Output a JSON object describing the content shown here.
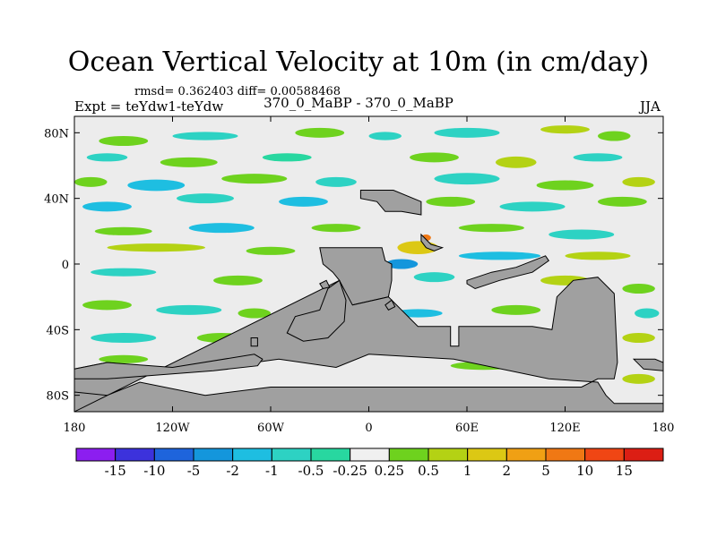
{
  "header": {
    "title": "Ocean Vertical Velocity at 10m (in cm/day)",
    "stats": "rmsd= 0.362403 diff= 0.00588468",
    "expt": "Expt = teYdw1-teYdw",
    "center_label": "370_0_MaBP - 370_0_MaBP",
    "season": "JJA"
  },
  "chart_data": {
    "type": "heatmap",
    "title": "Ocean Vertical Velocity at 10m (in cm/day)",
    "xlim": [
      -180,
      180
    ],
    "ylim": [
      -90,
      90
    ],
    "x_ticks": [
      {
        "value": -180,
        "label": "180"
      },
      {
        "value": -120,
        "label": "120W"
      },
      {
        "value": -60,
        "label": "60W"
      },
      {
        "value": 0,
        "label": "0"
      },
      {
        "value": 60,
        "label": "60E"
      },
      {
        "value": 120,
        "label": "120E"
      },
      {
        "value": 180,
        "label": "180"
      }
    ],
    "y_ticks": [
      {
        "value": 80,
        "label": "80N"
      },
      {
        "value": 40,
        "label": "40N"
      },
      {
        "value": 0,
        "label": "0"
      },
      {
        "value": -40,
        "label": "40S"
      },
      {
        "value": -80,
        "label": "80S"
      }
    ],
    "colorbar": {
      "labels": [
        "-15",
        "-10",
        "-5",
        "-2",
        "-1",
        "-0.5",
        "-0.25",
        "0.25",
        "0.5",
        "1",
        "2",
        "5",
        "10",
        "15"
      ],
      "colors": [
        "#8c1ef0",
        "#3c32dc",
        "#1e64dc",
        "#1496dc",
        "#1ebee1",
        "#2dd2c3",
        "#28d7a0",
        "#f0f0f0",
        "#6ed21e",
        "#b4d214",
        "#dcc814",
        "#f0a014",
        "#f07814",
        "#f04614",
        "#dc1e14"
      ]
    },
    "land_color": "#a0a0a0",
    "ocean_color": "#ececec",
    "land_polygons": [
      {
        "name": "africa-eurasia-land",
        "points": [
          [
            -30,
            10
          ],
          [
            8,
            10
          ],
          [
            10,
            2
          ],
          [
            14,
            0
          ],
          [
            14,
            -10
          ],
          [
            12,
            -20
          ],
          [
            -10,
            -25
          ],
          [
            -14,
            -22
          ],
          [
            -18,
            -10
          ],
          [
            -22,
            -5
          ],
          [
            -28,
            0
          ]
        ]
      },
      {
        "name": "south-land",
        "points": [
          [
            -18,
            -10
          ],
          [
            -10,
            -25
          ],
          [
            12,
            -20
          ],
          [
            30,
            -38
          ],
          [
            50,
            -38
          ],
          [
            50,
            -50
          ],
          [
            55,
            -50
          ],
          [
            55,
            -38
          ],
          [
            100,
            -38
          ],
          [
            112,
            -40
          ],
          [
            115,
            -20
          ],
          [
            125,
            -10
          ],
          [
            140,
            -8
          ],
          [
            150,
            -18
          ],
          [
            152,
            -60
          ],
          [
            150,
            -70
          ],
          [
            140,
            -70
          ],
          [
            130,
            -75
          ],
          [
            0,
            -75
          ],
          [
            -60,
            -75
          ],
          [
            -100,
            -80
          ],
          [
            -140,
            -72
          ],
          [
            -160,
            -80
          ],
          [
            -180,
            -78
          ],
          [
            -180,
            -90
          ],
          [
            180,
            -90
          ],
          [
            180,
            -85
          ],
          [
            150,
            -85
          ],
          [
            145,
            -80
          ],
          [
            140,
            -72
          ],
          [
            110,
            -70
          ],
          [
            52,
            -58
          ],
          [
            0,
            -55
          ],
          [
            -20,
            -63
          ],
          [
            -55,
            -58
          ],
          [
            -70,
            -60
          ],
          [
            -90,
            -62
          ],
          [
            -110,
            -65
          ],
          [
            -160,
            -60
          ],
          [
            -180,
            -64
          ],
          [
            -180,
            -78
          ],
          [
            -180,
            -90
          ]
        ]
      },
      {
        "name": "west-antarctic-land",
        "points": [
          [
            -180,
            -64
          ],
          [
            -160,
            -60
          ],
          [
            -120,
            -63
          ],
          [
            -70,
            -55
          ],
          [
            -65,
            -58
          ],
          [
            -68,
            -62
          ],
          [
            -95,
            -65
          ],
          [
            -160,
            -70
          ],
          [
            -180,
            -70
          ]
        ]
      },
      {
        "name": "west-land-lobe",
        "points": [
          [
            -50,
            -42
          ],
          [
            -45,
            -32
          ],
          [
            -30,
            -28
          ],
          [
            -25,
            -15
          ],
          [
            -18,
            -10
          ],
          [
            -14,
            -22
          ],
          [
            -15,
            -35
          ],
          [
            -25,
            -45
          ],
          [
            -40,
            -47
          ]
        ]
      },
      {
        "name": "north-island-1",
        "points": [
          [
            -5,
            45
          ],
          [
            15,
            45
          ],
          [
            32,
            38
          ],
          [
            32,
            30
          ],
          [
            20,
            32
          ],
          [
            10,
            32
          ],
          [
            5,
            38
          ],
          [
            -5,
            40
          ]
        ]
      },
      {
        "name": "north-island-2",
        "points": [
          [
            32,
            18
          ],
          [
            38,
            12
          ],
          [
            45,
            10
          ],
          [
            40,
            8
          ],
          [
            35,
            10
          ],
          [
            32,
            14
          ]
        ]
      },
      {
        "name": "east-ridge-island",
        "points": [
          [
            60,
            -10
          ],
          [
            75,
            -5
          ],
          [
            90,
            -2
          ],
          [
            108,
            5
          ],
          [
            110,
            2
          ],
          [
            100,
            -5
          ],
          [
            80,
            -10
          ],
          [
            65,
            -15
          ],
          [
            60,
            -12
          ]
        ]
      },
      {
        "name": "small-island-west",
        "points": [
          [
            -30,
            -12
          ],
          [
            -26,
            -10
          ],
          [
            -24,
            -14
          ],
          [
            -28,
            -15
          ]
        ]
      },
      {
        "name": "small-island-mid",
        "points": [
          [
            10,
            -25
          ],
          [
            14,
            -22
          ],
          [
            16,
            -26
          ],
          [
            12,
            -28
          ]
        ]
      },
      {
        "name": "small-island-east",
        "points": [
          [
            162,
            -58
          ],
          [
            175,
            -58
          ],
          [
            180,
            -60
          ],
          [
            180,
            -65
          ],
          [
            168,
            -64
          ]
        ]
      },
      {
        "name": "small-island-nw",
        "points": [
          [
            -72,
            -45
          ],
          [
            -68,
            -45
          ],
          [
            -68,
            -50
          ],
          [
            -72,
            -50
          ]
        ]
      }
    ],
    "anomaly_patches": [
      {
        "lon": -150,
        "lat": 75,
        "w": 30,
        "h": 6,
        "level": 8
      },
      {
        "lon": -100,
        "lat": 78,
        "w": 40,
        "h": 5,
        "level": 5
      },
      {
        "lon": -30,
        "lat": 80,
        "w": 30,
        "h": 6,
        "level": 8
      },
      {
        "lon": 10,
        "lat": 78,
        "w": 20,
        "h": 5,
        "level": 5
      },
      {
        "lon": 60,
        "lat": 80,
        "w": 40,
        "h": 6,
        "level": 5
      },
      {
        "lon": 120,
        "lat": 82,
        "w": 30,
        "h": 5,
        "level": 9
      },
      {
        "lon": 150,
        "lat": 78,
        "w": 20,
        "h": 6,
        "level": 8
      },
      {
        "lon": -160,
        "lat": 65,
        "w": 25,
        "h": 5,
        "level": 5
      },
      {
        "lon": -110,
        "lat": 62,
        "w": 35,
        "h": 6,
        "level": 8
      },
      {
        "lon": -50,
        "lat": 65,
        "w": 30,
        "h": 5,
        "level": 6
      },
      {
        "lon": 40,
        "lat": 65,
        "w": 30,
        "h": 6,
        "level": 8
      },
      {
        "lon": 90,
        "lat": 62,
        "w": 25,
        "h": 7,
        "level": 9
      },
      {
        "lon": 140,
        "lat": 65,
        "w": 30,
        "h": 5,
        "level": 5
      },
      {
        "lon": -170,
        "lat": 50,
        "w": 20,
        "h": 6,
        "level": 8
      },
      {
        "lon": -130,
        "lat": 48,
        "w": 35,
        "h": 7,
        "level": 4
      },
      {
        "lon": -70,
        "lat": 52,
        "w": 40,
        "h": 6,
        "level": 8
      },
      {
        "lon": -20,
        "lat": 50,
        "w": 25,
        "h": 6,
        "level": 5
      },
      {
        "lon": 60,
        "lat": 52,
        "w": 40,
        "h": 7,
        "level": 5
      },
      {
        "lon": 120,
        "lat": 48,
        "w": 35,
        "h": 6,
        "level": 8
      },
      {
        "lon": 165,
        "lat": 50,
        "w": 20,
        "h": 6,
        "level": 9
      },
      {
        "lon": -160,
        "lat": 35,
        "w": 30,
        "h": 6,
        "level": 4
      },
      {
        "lon": -100,
        "lat": 40,
        "w": 35,
        "h": 6,
        "level": 5
      },
      {
        "lon": -40,
        "lat": 38,
        "w": 30,
        "h": 6,
        "level": 4
      },
      {
        "lon": 50,
        "lat": 38,
        "w": 30,
        "h": 6,
        "level": 8
      },
      {
        "lon": 100,
        "lat": 35,
        "w": 40,
        "h": 6,
        "level": 5
      },
      {
        "lon": 155,
        "lat": 38,
        "w": 30,
        "h": 6,
        "level": 8
      },
      {
        "lon": -150,
        "lat": 20,
        "w": 35,
        "h": 5,
        "level": 8
      },
      {
        "lon": -90,
        "lat": 22,
        "w": 40,
        "h": 6,
        "level": 4
      },
      {
        "lon": -20,
        "lat": 22,
        "w": 30,
        "h": 5,
        "level": 8
      },
      {
        "lon": 75,
        "lat": 22,
        "w": 40,
        "h": 5,
        "level": 8
      },
      {
        "lon": 130,
        "lat": 18,
        "w": 40,
        "h": 6,
        "level": 5
      },
      {
        "lon": -130,
        "lat": 10,
        "w": 60,
        "h": 5,
        "level": 9
      },
      {
        "lon": -60,
        "lat": 8,
        "w": 30,
        "h": 5,
        "level": 8
      },
      {
        "lon": 30,
        "lat": 10,
        "w": 25,
        "h": 8,
        "level": 10
      },
      {
        "lon": 35,
        "lat": 16,
        "w": 6,
        "h": 4,
        "level": 12
      },
      {
        "lon": 80,
        "lat": 5,
        "w": 50,
        "h": 5,
        "level": 4
      },
      {
        "lon": 140,
        "lat": 5,
        "w": 40,
        "h": 5,
        "level": 9
      },
      {
        "lon": 20,
        "lat": 0,
        "w": 20,
        "h": 6,
        "level": 3
      },
      {
        "lon": -150,
        "lat": -5,
        "w": 40,
        "h": 5,
        "level": 5
      },
      {
        "lon": -80,
        "lat": -10,
        "w": 30,
        "h": 6,
        "level": 8
      },
      {
        "lon": 40,
        "lat": -8,
        "w": 25,
        "h": 6,
        "level": 5
      },
      {
        "lon": 120,
        "lat": -10,
        "w": 30,
        "h": 6,
        "level": 9
      },
      {
        "lon": 165,
        "lat": -15,
        "w": 20,
        "h": 6,
        "level": 8
      },
      {
        "lon": -160,
        "lat": -25,
        "w": 30,
        "h": 6,
        "level": 8
      },
      {
        "lon": -110,
        "lat": -28,
        "w": 40,
        "h": 6,
        "level": 5
      },
      {
        "lon": -70,
        "lat": -30,
        "w": 20,
        "h": 6,
        "level": 8
      },
      {
        "lon": 30,
        "lat": -30,
        "w": 30,
        "h": 5,
        "level": 4
      },
      {
        "lon": 90,
        "lat": -28,
        "w": 30,
        "h": 6,
        "level": 8
      },
      {
        "lon": 170,
        "lat": -30,
        "w": 15,
        "h": 6,
        "level": 5
      },
      {
        "lon": -150,
        "lat": -45,
        "w": 40,
        "h": 6,
        "level": 5
      },
      {
        "lon": -90,
        "lat": -45,
        "w": 30,
        "h": 6,
        "level": 8
      },
      {
        "lon": 0,
        "lat": -45,
        "w": 20,
        "h": 5,
        "level": 8
      },
      {
        "lon": 165,
        "lat": -45,
        "w": 20,
        "h": 6,
        "level": 9
      },
      {
        "lon": -150,
        "lat": -58,
        "w": 30,
        "h": 5,
        "level": 8
      },
      {
        "lon": 70,
        "lat": -62,
        "w": 40,
        "h": 5,
        "level": 8
      },
      {
        "lon": 165,
        "lat": -70,
        "w": 20,
        "h": 6,
        "level": 9
      }
    ]
  }
}
